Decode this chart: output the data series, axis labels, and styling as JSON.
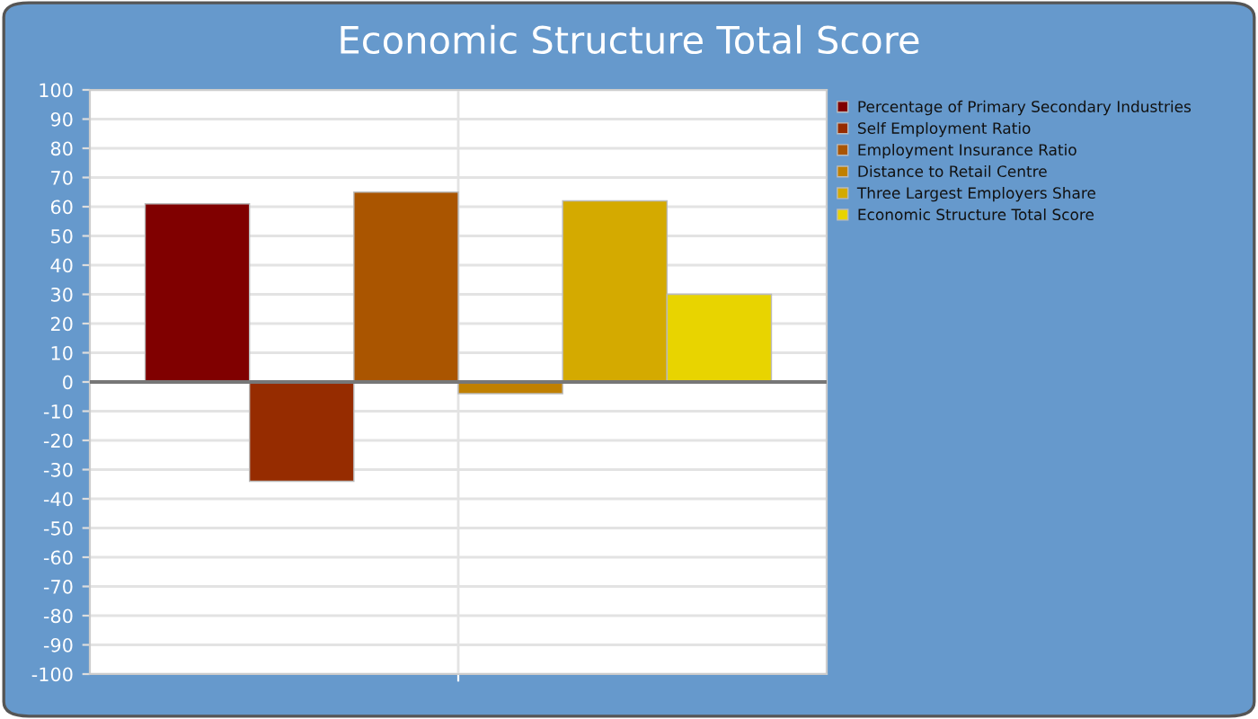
{
  "chart_data": {
    "type": "bar",
    "title": "Economic Structure Total Score",
    "categories": [
      null
    ],
    "series": [
      {
        "name": "Percentage of Primary Secondary Industries",
        "color": "#800000",
        "values": [
          61
        ]
      },
      {
        "name": "Self Employment Ratio",
        "color": "#962c00",
        "values": [
          -34
        ]
      },
      {
        "name": "Employment Insurance Ratio",
        "color": "#aa5500",
        "values": [
          65
        ]
      },
      {
        "name": "Distance to Retail Centre",
        "color": "#c08000",
        "values": [
          -4
        ]
      },
      {
        "name": "Three Largest Employers Share",
        "color": "#d4aa00",
        "values": [
          62
        ]
      },
      {
        "name": "Economic Structure Total Score",
        "color": "#e8d400",
        "values": [
          30
        ]
      }
    ],
    "ylim": [
      -100,
      100
    ],
    "yticks": [
      -100,
      -90,
      -80,
      -70,
      -60,
      -50,
      -40,
      -30,
      -20,
      -10,
      0,
      10,
      20,
      30,
      40,
      50,
      60,
      70,
      80,
      90,
      100
    ],
    "grid": true,
    "legend": "right"
  }
}
